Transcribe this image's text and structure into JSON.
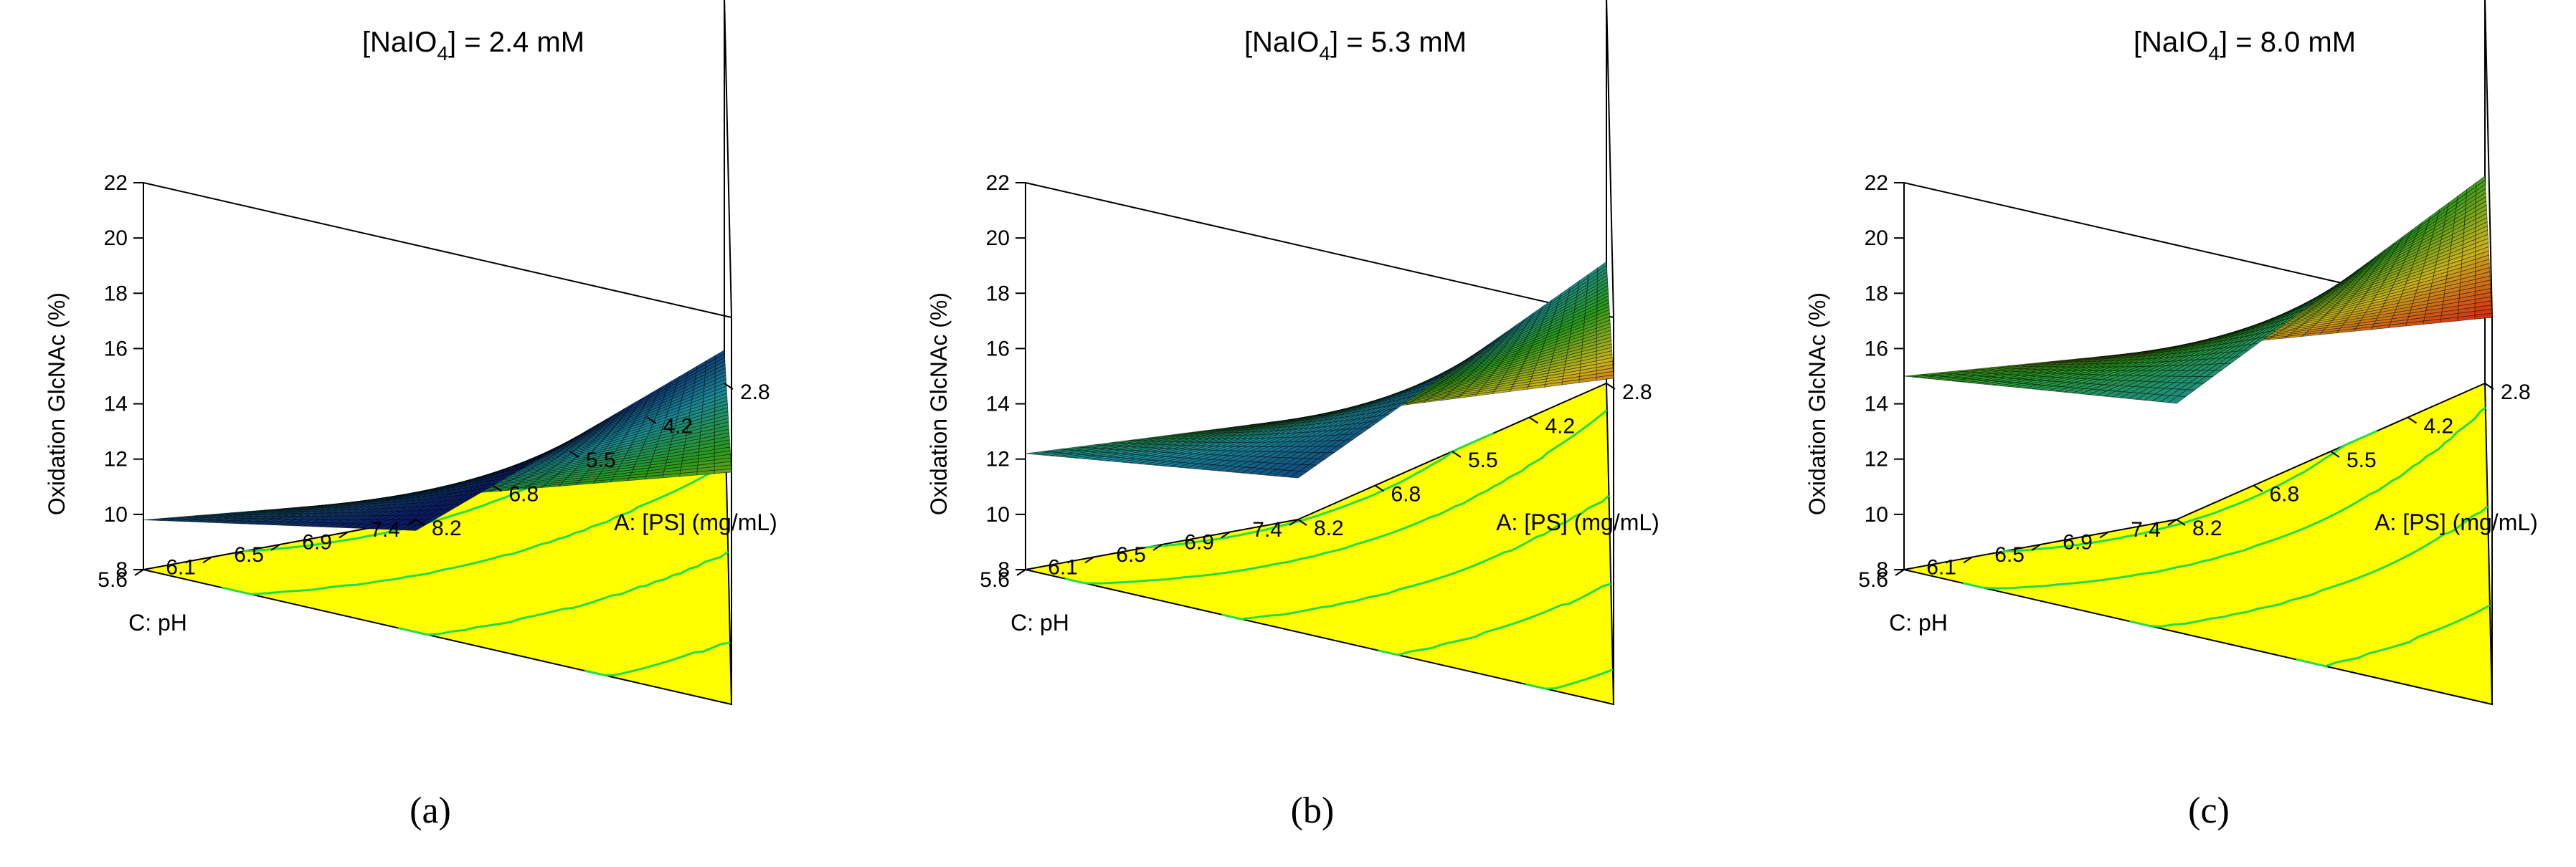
{
  "chart_data": [
    {
      "type": "surface3d",
      "panel_label": "(a)",
      "title_prefix": "[NaIO",
      "title_subscript": "4",
      "title_suffix": "] = 2.4 mM",
      "zlabel": "Oxidation GlcNAc (%)",
      "xlabel": "A: [PS] (mg/mL)",
      "ylabel": "C: pH",
      "z_ticks": [
        "8",
        "10",
        "12",
        "14",
        "16",
        "18",
        "20",
        "22"
      ],
      "x_ticks": [
        "2.8",
        "4.2",
        "5.5",
        "6.8",
        "8.2"
      ],
      "y_ticks": [
        "5.6",
        "6.1",
        "6.5",
        "6.9",
        "7.4"
      ],
      "z_range": [
        8,
        22
      ],
      "corner_values": {
        "left": 9.8,
        "front": 7.6,
        "right": 9.2,
        "back": 16.4
      },
      "center_value": 10.3
    },
    {
      "type": "surface3d",
      "panel_label": "(b)",
      "title_prefix": "[NaIO",
      "title_subscript": "4",
      "title_suffix": "] = 5.3 mM",
      "zlabel": "Oxidation GlcNAc (%)",
      "xlabel": "A: [PS] (mg/mL)",
      "ylabel": "C: pH",
      "z_ticks": [
        "8",
        "10",
        "12",
        "14",
        "16",
        "18",
        "20",
        "22"
      ],
      "x_ticks": [
        "2.8",
        "4.2",
        "5.5",
        "6.8",
        "8.2"
      ],
      "y_ticks": [
        "5.6",
        "6.1",
        "6.5",
        "6.9",
        "7.4"
      ],
      "z_range": [
        8,
        22
      ],
      "corner_values": {
        "left": 12.2,
        "front": 9.5,
        "right": 12.4,
        "back": 19.8
      },
      "center_value": 12.9
    },
    {
      "type": "surface3d",
      "panel_label": "(c)",
      "title_prefix": "[NaIO",
      "title_subscript": "4",
      "title_suffix": "] = 8.0 mM",
      "zlabel": "Oxidation GlcNAc (%)",
      "xlabel": "A: [PS] (mg/mL)",
      "ylabel": "C: pH",
      "z_ticks": [
        "8",
        "10",
        "12",
        "14",
        "16",
        "18",
        "20",
        "22"
      ],
      "x_ticks": [
        "2.8",
        "4.2",
        "5.5",
        "6.8",
        "8.2"
      ],
      "y_ticks": [
        "5.6",
        "6.1",
        "6.5",
        "6.9",
        "7.4"
      ],
      "z_range": [
        8,
        22
      ],
      "corner_values": {
        "left": 15.0,
        "front": 12.2,
        "right": 15.5,
        "back": 22.0
      },
      "center_value": 15.6
    }
  ],
  "colors": {
    "floor": "#ffff00",
    "contour": "#22dd44",
    "axis": "#000000",
    "low": "#0a1a66",
    "mid_low": "#1a8a99",
    "mid": "#2a9a1a",
    "mid_high": "#c8b41a",
    "high": "#d42a10"
  }
}
